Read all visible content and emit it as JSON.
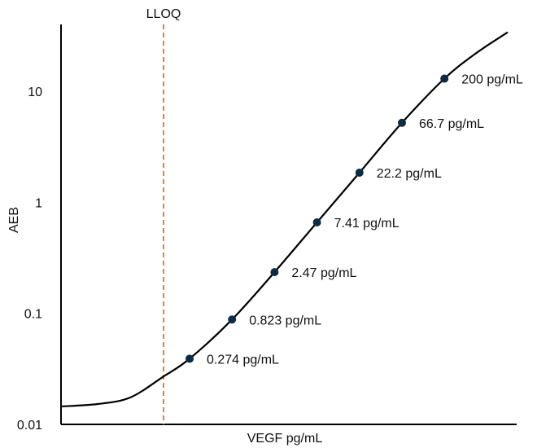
{
  "chart_data": {
    "type": "line",
    "xlabel": "VEGF pg/mL",
    "ylabel": "AEB",
    "y_scale": "log",
    "ylim": [
      0.01,
      40
    ],
    "y_ticks": [
      {
        "value": 0.01,
        "label": "0.01"
      },
      {
        "value": 0.1,
        "label": "0.1"
      },
      {
        "value": 1,
        "label": "1"
      },
      {
        "value": 10,
        "label": "10"
      }
    ],
    "x_tick_labels": false,
    "grid": false,
    "lloq": {
      "label": "LLOQ",
      "color": "#ED7D31",
      "style": "dashed"
    },
    "points": [
      {
        "label": "0.274 pg/mL",
        "y": 0.039
      },
      {
        "label": "0.823 pg/mL",
        "y": 0.088
      },
      {
        "label": "2.47 pg/mL",
        "y": 0.235
      },
      {
        "label": "7.41 pg/mL",
        "y": 0.66
      },
      {
        "label": "22.2 pg/mL",
        "y": 1.85
      },
      {
        "label": "66.7 pg/mL",
        "y": 5.2
      },
      {
        "label": "200 pg/mL",
        "y": 13.0
      }
    ],
    "curve_color": "#000000",
    "point_color": "#0D2B45"
  }
}
